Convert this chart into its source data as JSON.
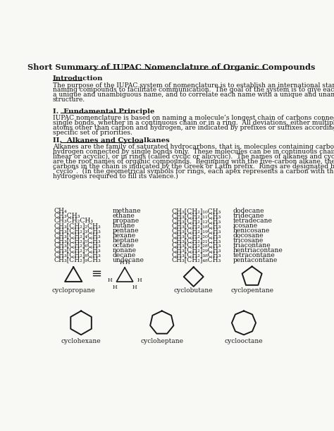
{
  "title": "Short Summary of IUPAC Nomenclature of Organic Compounds",
  "bg_color": "#f8f8f5",
  "text_color": "#1a1a1a",
  "intro_heading": "Introduction",
  "intro_text": "The purpose of the IUPAC system of nomenclature is to establish an international standard of\nnaming compounds to facilitate communication.  The goal of the system is to give each structure\na unique and unambiguous name, and to correlate each name with a unique and unambiguous\nstructure.",
  "section1_heading": "I.  Fundamental Principle",
  "section1_text": "IUPAC nomenclature is based on naming a molecule’s longest chain of carbons connected by\nsingle bonds, whether in a continuous chain or in a ring.  All deviations, either multiple bonds or\natoms other than carbon and hydrogen, are indicated by prefixes or suffixes according to a\nspecific set of priorities.",
  "section2_heading": "II.  Alkanes and Cycloalkanes",
  "section2_text": "Alkanes are the family of saturated hydrocarbons, that is, molecules containing carbon and\nhydrogen connected by single bonds only.  These molecules can be in continuous chains (called\nlinear or acyclic), or in rings (called cyclic or alicyclic).  The names of alkanes and cycloalkanes\nare the root names of organic compounds.  Beginning with the five-carbon alkane, the number of\ncarbons in the chain is indicated by the Greek or Latin prefix.  Rings are designated by the prefix\n“cyclo”.  (In the geometrical symbols for rings, each apex represents a carbon with the number of\nhydrogens required to fill its valence.)",
  "alkanes_left": [
    [
      "CH₄",
      "methane"
    ],
    [
      "CH₃CH₃",
      "ethane"
    ],
    [
      "CH₃CH₂CH₃",
      "propane"
    ],
    [
      "CH₃[CH₂]₂CH₃",
      "butane"
    ],
    [
      "CH₃[CH₂]₃CH₃",
      "pentane"
    ],
    [
      "CH₃[CH₂]₄CH₃",
      "hexane"
    ],
    [
      "CH₃[CH₂]₅CH₃",
      "heptane"
    ],
    [
      "CH₃[CH₂]₆CH₃",
      "octane"
    ],
    [
      "CH₃[CH₂]₇CH₃",
      "nonane"
    ],
    [
      "CH₃[CH₂]₈CH₃",
      "decane"
    ],
    [
      "CH₃[CH₂]₉CH₃",
      "undecane"
    ]
  ],
  "alkanes_right": [
    [
      "CH₃[CH₂]₁₀CH₃",
      "dodecane"
    ],
    [
      "CH₃[CH₂]₁₁CH₃",
      "tridecane"
    ],
    [
      "CH₃[CH₂]₁₂CH₃",
      "tetradecane"
    ],
    [
      "CH₃[CH₂]₁₈CH₃",
      "icosane"
    ],
    [
      "CH₃[CH₂]₁₉CH₃",
      "henicosane"
    ],
    [
      "CH₃[CH₂]₂₀CH₃",
      "docosane"
    ],
    [
      "CH₃[CH₂]₂₁CH₃",
      "tricosane"
    ],
    [
      "CH₃[CH₂]₂₈CH₃",
      "triacontane"
    ],
    [
      "CH₃[CH₂]₂₉CH₃",
      "hentriacontane"
    ],
    [
      "CH₃[CH₂]₃₈CH₃",
      "tetracontane"
    ],
    [
      "CH₃[CH₂]₄₈CH₃",
      "pentacontane"
    ]
  ]
}
